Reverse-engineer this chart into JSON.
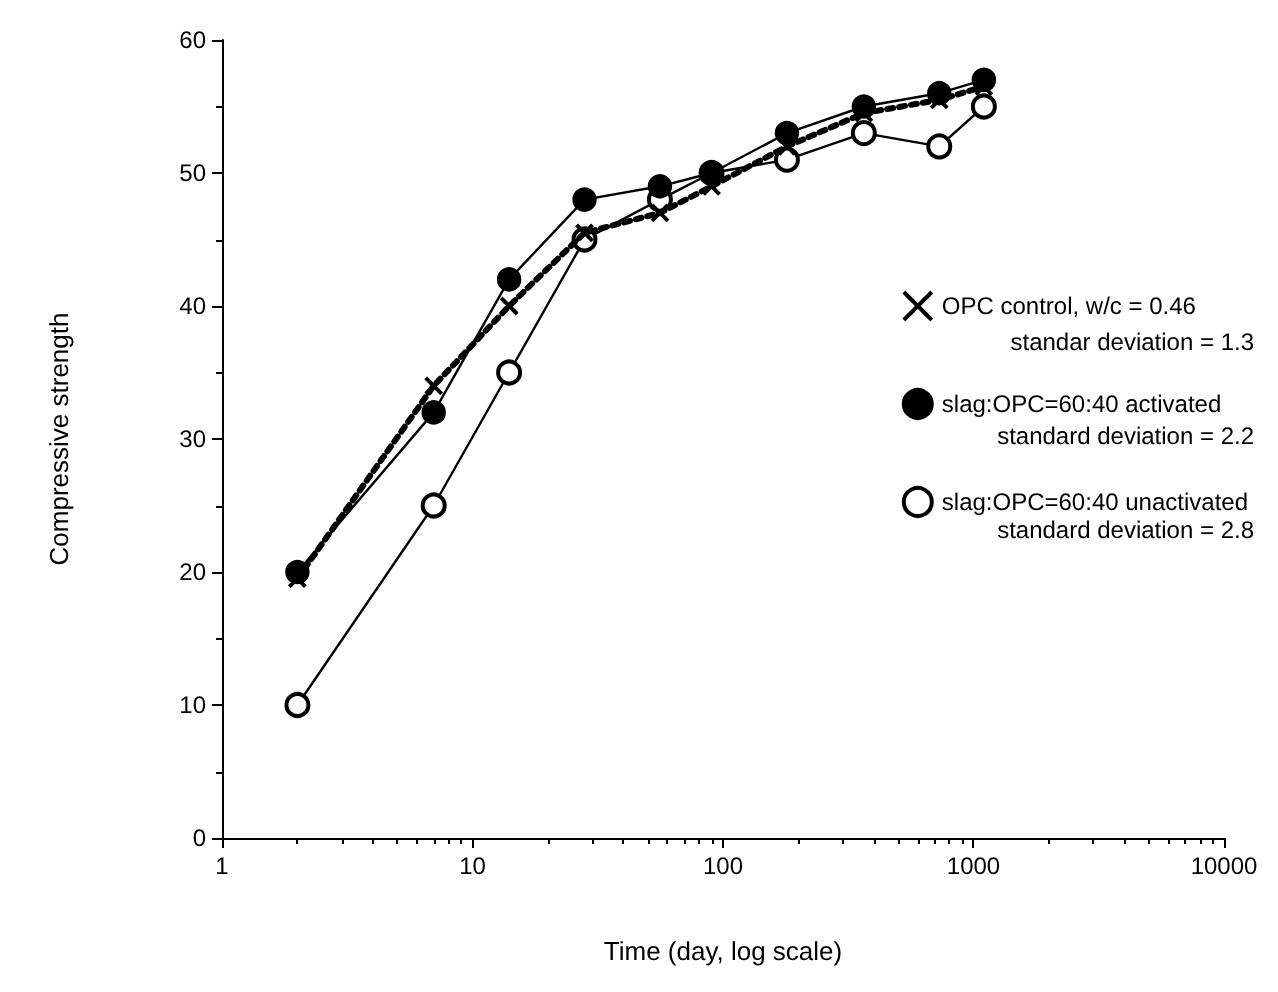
{
  "chart_data": {
    "type": "line",
    "xlabel": "Time (day, log scale)",
    "ylabel": "Compressive strength",
    "log": "x",
    "xlim": [
      1,
      10000
    ],
    "xticks": [
      1,
      10,
      100,
      1000,
      10000
    ],
    "ylim": [
      0,
      60
    ],
    "yticks": [
      0,
      10,
      20,
      30,
      40,
      50,
      60
    ],
    "grid": false,
    "legend": "right",
    "x": [
      2,
      7,
      14,
      28,
      56,
      90,
      180,
      365,
      730,
      1100
    ],
    "series": [
      {
        "name": "OPC control, w/c = 0.46",
        "color": "#000000",
        "marker": "cross",
        "line_style": "dotted",
        "values": [
          19.5,
          34,
          40,
          45.5,
          47,
          49,
          52,
          54.5,
          55.5,
          56.5
        ]
      },
      {
        "name": "slag:OPC=60:40 activated",
        "color": "#000000",
        "marker": "circle",
        "line_style": "solid",
        "values": [
          20,
          32,
          42,
          48,
          49,
          50,
          53,
          55,
          56,
          57
        ]
      },
      {
        "name": "slag:OPC=60:40 unactivated",
        "color": "#000000",
        "marker": "open circle",
        "line_style": "solid",
        "values": [
          10,
          25,
          35,
          45,
          48,
          50,
          51,
          53,
          52,
          55
        ]
      }
    ],
    "annotations": [
      "standar deviation = 1.3",
      "standard deviation = 2.2",
      "standard deviation = 2.8"
    ]
  }
}
